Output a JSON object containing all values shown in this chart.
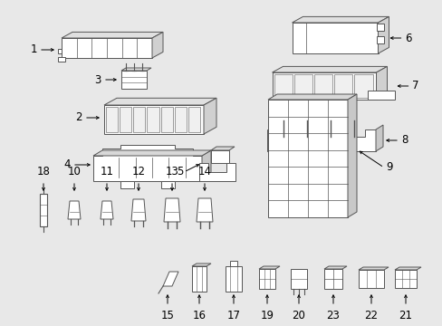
{
  "bg_color": "#e8e8e8",
  "line_color": "#555555",
  "label_color": "#000000",
  "lw": 0.7,
  "fig_w": 4.89,
  "fig_h": 3.6,
  "dpi": 100
}
